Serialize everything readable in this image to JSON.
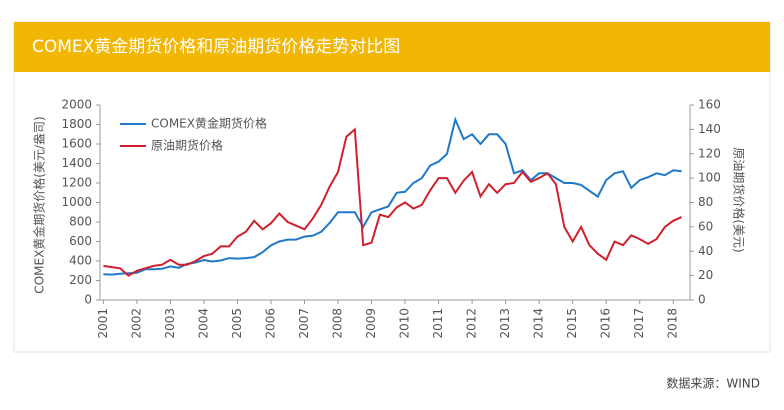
{
  "chart_data": {
    "type": "line",
    "title": "COMEX黄金期货价格和原油期货价格走势对比图",
    "source": "数据来源：WIND",
    "ylabel": "COMEX黄金期货价格(美元/盎司)",
    "y2label": "原油期货价格(美元)",
    "x": [
      2001,
      2001.25,
      2001.5,
      2001.75,
      2002,
      2002.25,
      2002.5,
      2002.75,
      2003,
      2003.25,
      2003.5,
      2003.75,
      2004,
      2004.25,
      2004.5,
      2004.75,
      2005,
      2005.25,
      2005.5,
      2005.75,
      2006,
      2006.25,
      2006.5,
      2006.75,
      2007,
      2007.25,
      2007.5,
      2007.75,
      2008,
      2008.25,
      2008.5,
      2008.75,
      2009,
      2009.25,
      2009.5,
      2009.75,
      2010,
      2010.25,
      2010.5,
      2010.75,
      2011,
      2011.25,
      2011.5,
      2011.75,
      2012,
      2012.25,
      2012.5,
      2012.75,
      2013,
      2013.25,
      2013.5,
      2013.75,
      2014,
      2014.25,
      2014.5,
      2014.75,
      2015,
      2015.25,
      2015.5,
      2015.75,
      2016,
      2016.25,
      2016.5,
      2016.75,
      2017,
      2017.25,
      2017.5,
      2017.75,
      2018,
      2018.25
    ],
    "xlim": [
      2000.9,
      2018.5
    ],
    "xticks": [
      2001,
      2002,
      2003,
      2004,
      2005,
      2006,
      2007,
      2008,
      2009,
      2010,
      2011,
      2012,
      2013,
      2014,
      2015,
      2016,
      2017,
      2018
    ],
    "ylim": [
      0,
      2000
    ],
    "yticks": [
      0,
      200,
      400,
      600,
      800,
      1000,
      1200,
      1400,
      1600,
      1800,
      2000
    ],
    "y2lim": [
      0,
      160
    ],
    "y2ticks": [
      0,
      20,
      40,
      60,
      80,
      100,
      120,
      140,
      160
    ],
    "legend": "upper-left",
    "series": [
      {
        "name": "COMEX黄金期货价格",
        "color": "#1f78c8",
        "values": [
          265,
          260,
          270,
          275,
          280,
          315,
          315,
          320,
          345,
          330,
          370,
          385,
          410,
          395,
          405,
          430,
          425,
          430,
          440,
          490,
          560,
          600,
          620,
          620,
          650,
          660,
          700,
          790,
          900,
          900,
          900,
          750,
          900,
          930,
          960,
          1100,
          1110,
          1200,
          1250,
          1380,
          1420,
          1500,
          1850,
          1650,
          1700,
          1600,
          1700,
          1700,
          1600,
          1300,
          1330,
          1230,
          1300,
          1300,
          1250,
          1200,
          1200,
          1180,
          1120,
          1060,
          1230,
          1300,
          1320,
          1150,
          1230,
          1260,
          1300,
          1280,
          1330,
          1320
        ]
      },
      {
        "name": "原油期货价格",
        "color": "#d0202e",
        "axis": "y2",
        "values": [
          28,
          27,
          26,
          20,
          24,
          26,
          28,
          29,
          33,
          29,
          29,
          32,
          36,
          38,
          44,
          44,
          52,
          56,
          65,
          58,
          63,
          71,
          64,
          61,
          58,
          67,
          78,
          93,
          105,
          134,
          140,
          45,
          47,
          70,
          68,
          76,
          80,
          75,
          78,
          90,
          100,
          100,
          88,
          98,
          105,
          85,
          95,
          88,
          95,
          96,
          105,
          97,
          100,
          104,
          95,
          60,
          48,
          60,
          45,
          38,
          33,
          48,
          45,
          53,
          50,
          46,
          50,
          60,
          65,
          68
        ]
      }
    ]
  }
}
